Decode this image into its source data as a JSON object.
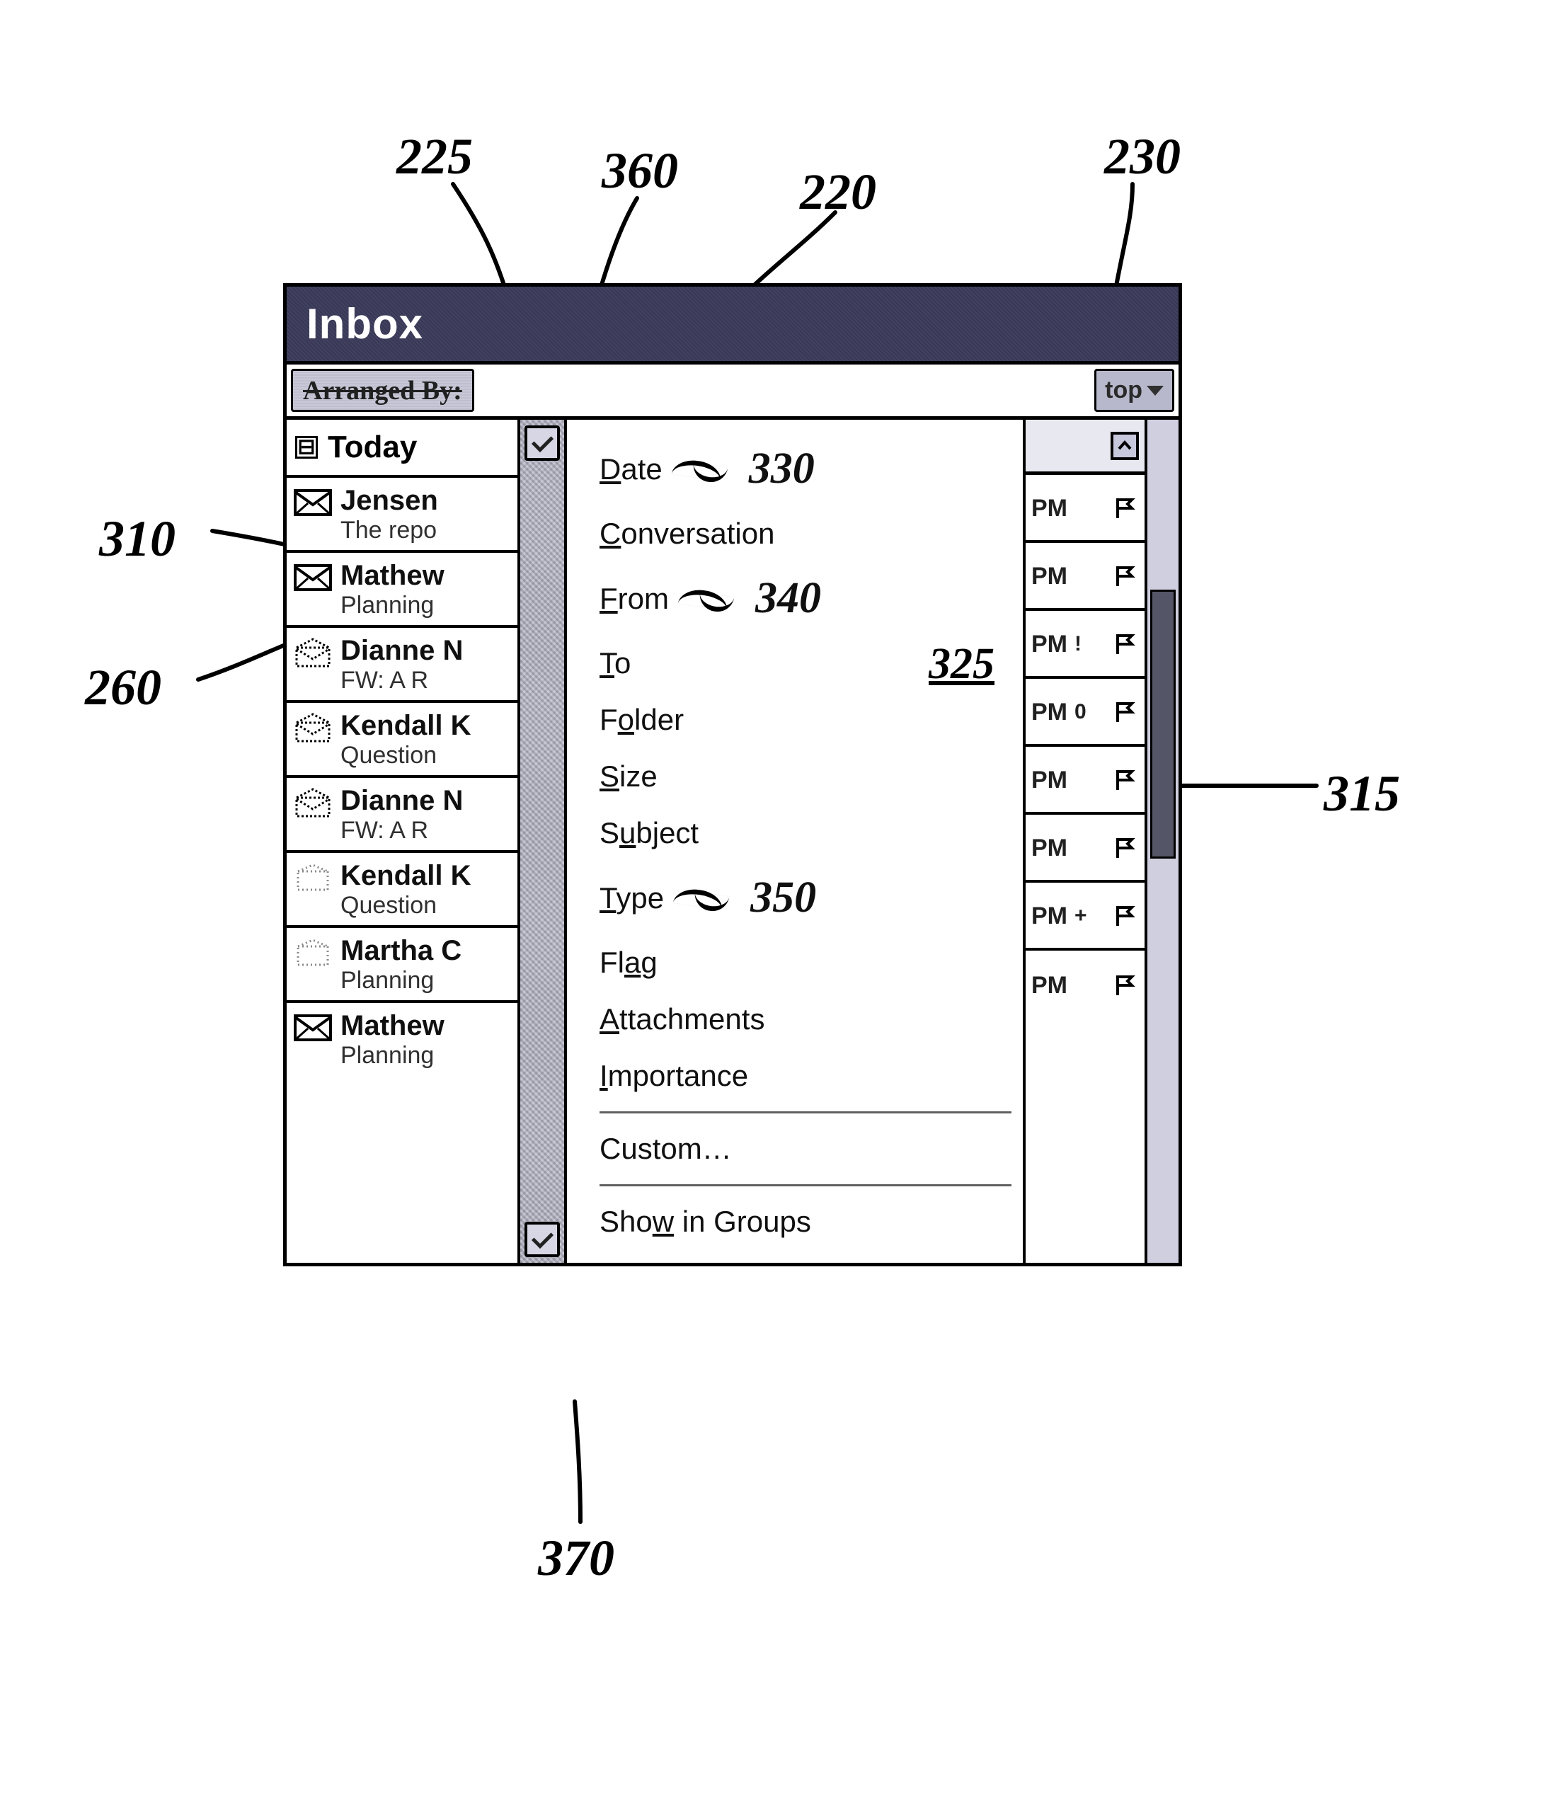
{
  "callouts": {
    "c225": "225",
    "c360": "360",
    "c220": "220",
    "c230": "230",
    "c310": "310",
    "c260": "260",
    "c315": "315",
    "c370": "370",
    "c330": "330",
    "c340": "340",
    "c350": "350",
    "c325": "325"
  },
  "window": {
    "title": "Inbox",
    "arranged_by_label": "Arranged By:",
    "top_label": "top"
  },
  "group": {
    "collapse_glyph": "⊟",
    "label": "Today"
  },
  "messages": [
    {
      "sender": "Jensen",
      "subject": "The repo",
      "icon": "closed"
    },
    {
      "sender": "Mathew",
      "subject": "Planning",
      "icon": "closed"
    },
    {
      "sender": "Dianne N",
      "subject": "FW: A R",
      "icon": "open"
    },
    {
      "sender": "Kendall K",
      "subject": "Question",
      "icon": "open"
    },
    {
      "sender": "Dianne N",
      "subject": "FW: A R",
      "icon": "open"
    },
    {
      "sender": "Kendall K",
      "subject": "Question",
      "icon": "faint"
    },
    {
      "sender": "Martha C",
      "subject": "Planning",
      "icon": "faint"
    },
    {
      "sender": "Mathew",
      "subject": "Planning",
      "icon": "closed"
    }
  ],
  "menu": {
    "items": [
      {
        "label": "Date",
        "u": 0,
        "ref": "c330"
      },
      {
        "label": "Conversation",
        "u": 0
      },
      {
        "label": "From",
        "u": 0,
        "ref": "c340"
      },
      {
        "label": "To",
        "u": 0
      },
      {
        "label": "Folder",
        "u": 1
      },
      {
        "label": "Size",
        "u": 0
      },
      {
        "label": "Subject",
        "u": 1
      },
      {
        "label": "Type",
        "u": 0,
        "ref": "c350"
      },
      {
        "label": "Flag",
        "u": 2
      },
      {
        "label": "Attachments",
        "u": 0
      },
      {
        "label": "Importance",
        "u": 0
      },
      {
        "sep": true
      },
      {
        "label": "Custom…",
        "u": -1
      },
      {
        "sep": true
      },
      {
        "label": "Show in Groups",
        "u": 3
      }
    ]
  },
  "pm": [
    {
      "label": "PM",
      "extra": ""
    },
    {
      "label": "PM",
      "extra": ""
    },
    {
      "label": "PM",
      "extra": "!"
    },
    {
      "label": "PM",
      "extra": "0"
    },
    {
      "label": "PM",
      "extra": ""
    },
    {
      "label": "PM",
      "extra": ""
    },
    {
      "label": "PM",
      "extra": "+"
    },
    {
      "label": "PM",
      "extra": ""
    }
  ],
  "colors": {
    "titlebar": "#3a3a5a",
    "grain": "#bcbccc",
    "border": "#000000"
  }
}
